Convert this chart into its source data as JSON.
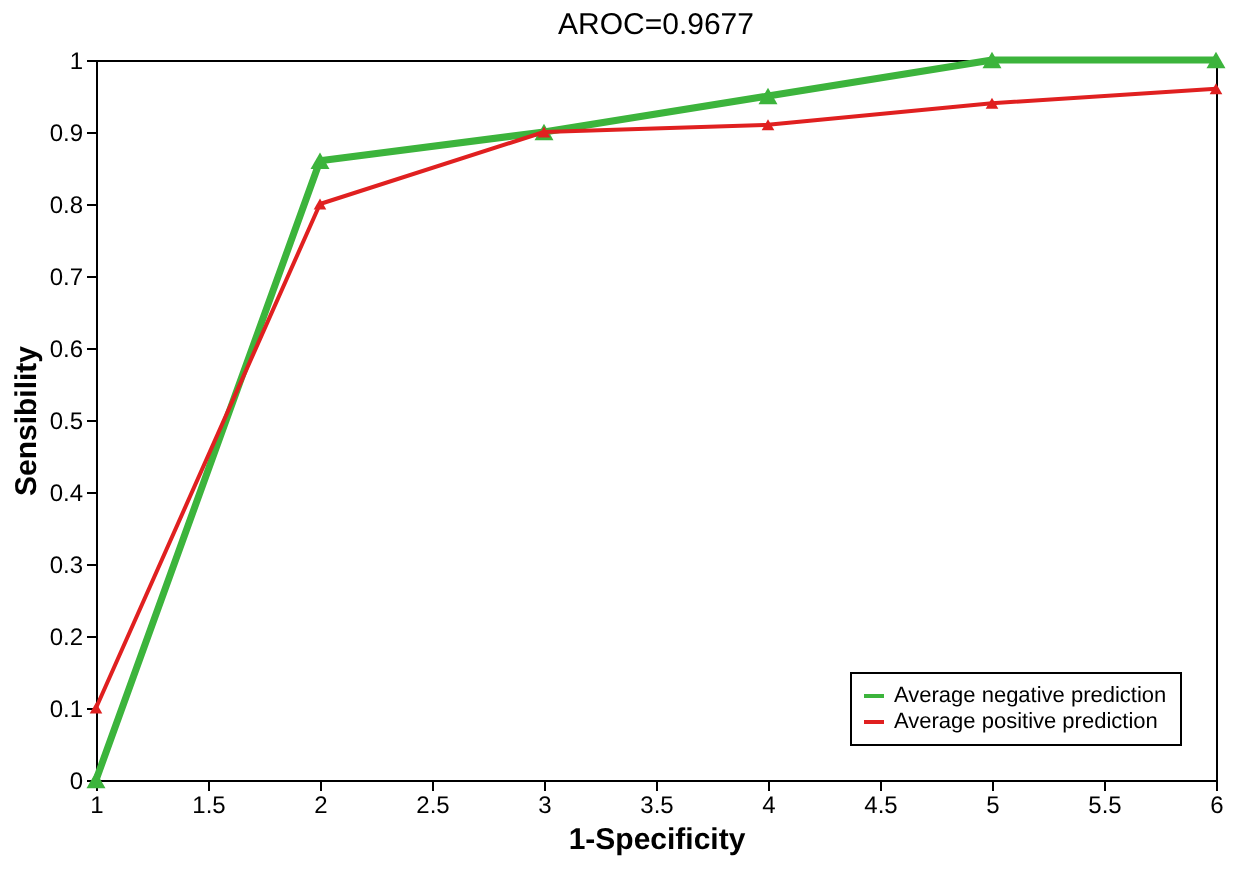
{
  "chart_data": {
    "type": "line",
    "title": "AROC=0.9677",
    "xlabel": "1-Specificity",
    "ylabel": "Sensibility",
    "x": [
      1,
      2,
      3,
      4,
      5,
      6
    ],
    "series": [
      {
        "name": "Average negative prediction",
        "color": "#3cb43c",
        "values": [
          0,
          0.86,
          0.9,
          0.95,
          1,
          1
        ]
      },
      {
        "name": "Average positive prediction",
        "color": "#e02020",
        "values": [
          0.1,
          0.8,
          0.9,
          0.91,
          0.94,
          0.96
        ]
      }
    ],
    "xlim": [
      1,
      6
    ],
    "ylim": [
      0,
      1
    ],
    "xticks": [
      1,
      1.5,
      2,
      2.5,
      3,
      3.5,
      4,
      4.5,
      5,
      5.5,
      6
    ],
    "yticks": [
      0,
      0.1,
      0.2,
      0.3,
      0.4,
      0.5,
      0.6,
      0.7,
      0.8,
      0.9,
      1
    ],
    "grid": false,
    "legend": "bottom right",
    "marker": "triangle",
    "line_style": "solid"
  }
}
